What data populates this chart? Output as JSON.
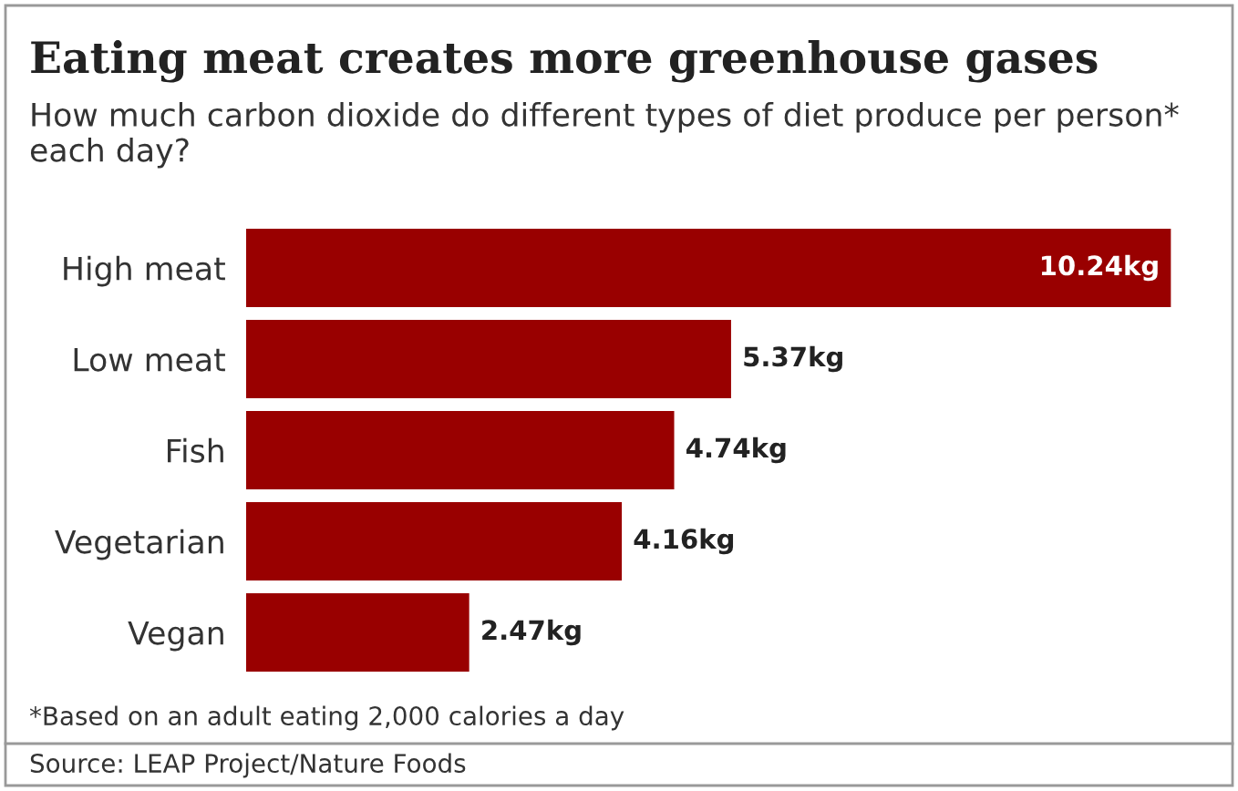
{
  "chart_data": {
    "type": "bar",
    "orientation": "horizontal",
    "title": "Eating meat creates more greenhouse gases",
    "subtitle": "How much carbon dioxide do different types of diet produce per person* each day?",
    "categories": [
      "High meat",
      "Low meat",
      "Fish",
      "Vegetarian",
      "Vegan"
    ],
    "values": [
      10.24,
      5.37,
      4.74,
      4.16,
      2.47
    ],
    "value_labels": [
      "10.24kg",
      "5.37kg",
      "4.74kg",
      "4.16kg",
      "2.47kg"
    ],
    "color": "#990000",
    "grid": false,
    "legend": false,
    "annotations": [
      "*Based on an adult eating 2,000 calories a day",
      "Source: LEAP Project/Nature Foods"
    ]
  }
}
